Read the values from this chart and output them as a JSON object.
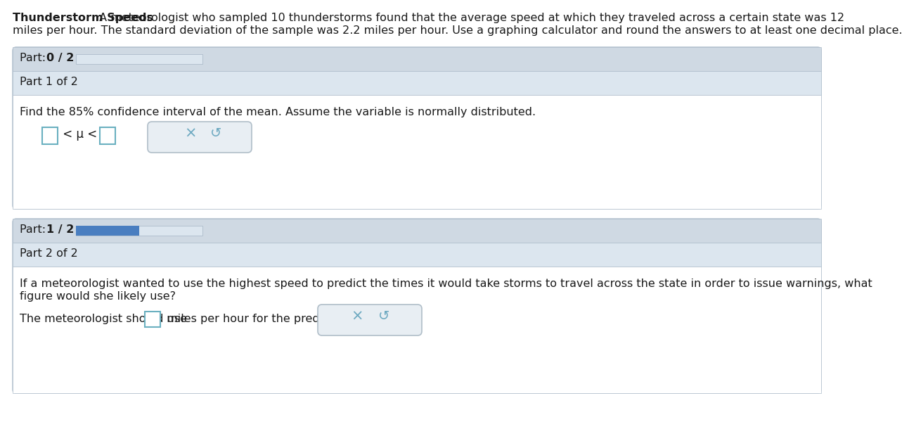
{
  "title_bold": "Thunderstorm Speeds",
  "title_rest_line1": " A meteorologist who sampled 10 thunderstorms found that the average speed at which they traveled across a certain state was 12",
  "title_rest_line2": "miles per hour. The standard deviation of the sample was 2.2 miles per hour. Use a graphing calculator and round the answers to at least one decimal place.",
  "bg_color": "#ffffff",
  "panel_bg": "#dce6ef",
  "panel_bg2": "#cfd9e3",
  "white_area": "#ffffff",
  "border_color": "#adbcca",
  "progress_empty": "#dce6ef",
  "progress_fill": "#4a7ec0",
  "part0_label": "Part: ",
  "part0_bold": "0 / 2",
  "part1_header": "Part 1 of 2",
  "part1_text": "Find the 85% confidence interval of the mean. Assume the variable is normally distributed.",
  "mu_text": " < μ < ",
  "part2_progress_plain": "Part: ",
  "part2_progress_bold": "1 / 2",
  "part2_header": "Part 2 of 2",
  "part2_text_line1": "If a meteorologist wanted to use the highest speed to predict the times it would take storms to travel across the state in order to issue warnings, what",
  "part2_text_line2": "figure would she likely use?",
  "part2_ans_pre": "The meteorologist should use",
  "part2_ans_suf": " miles per hour for the prediction.",
  "btn_bg": "#e8eef3",
  "btn_border": "#b0bec8",
  "btn_x": "×",
  "btn_r": "↺",
  "btn_color": "#6ba8c0",
  "input_border": "#6ab0c0",
  "text_color": "#1a1a1a",
  "fs": 11.5,
  "fs_label": 11.5
}
